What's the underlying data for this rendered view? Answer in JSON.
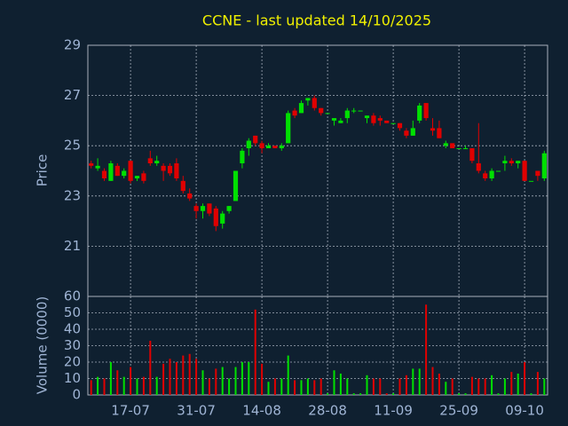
{
  "chart_data": [
    {
      "type": "candlestick",
      "title": "CCNE - last updated 14/10/2025",
      "ylabel": "Price",
      "up_color": "#00e000",
      "down_color": "#e00000",
      "grid": true,
      "ylim": [
        19,
        29
      ],
      "yticks": [
        21,
        23,
        25,
        27,
        29
      ],
      "open": [
        24.3,
        24.1,
        24.0,
        23.6,
        24.2,
        23.8,
        24.4,
        23.7,
        23.9,
        24.5,
        24.3,
        24.2,
        24.2,
        24.3,
        23.6,
        23.1,
        22.6,
        22.4,
        22.7,
        22.5,
        21.9,
        22.4,
        22.8,
        24.3,
        24.9,
        25.4,
        25.1,
        24.9,
        25.0,
        24.9,
        25.1,
        26.4,
        26.3,
        26.8,
        26.9,
        26.5,
        26.3,
        26.0,
        25.9,
        26.1,
        26.4,
        26.4,
        26.1,
        26.2,
        26.1,
        26.0,
        25.9,
        25.9,
        25.6,
        25.4,
        26.0,
        26.7,
        25.7,
        25.7,
        25.0,
        25.1,
        24.9,
        24.9,
        24.9,
        24.3,
        23.9,
        23.7,
        24.0,
        24.3,
        24.4,
        24.3,
        24.4,
        23.6,
        24.0,
        23.7
      ],
      "high": [
        24.4,
        24.5,
        24.1,
        24.4,
        24.3,
        24.1,
        24.4,
        23.8,
        24.0,
        24.8,
        24.6,
        24.3,
        24.3,
        24.5,
        23.8,
        23.3,
        22.7,
        22.7,
        22.7,
        22.6,
        22.4,
        22.6,
        24.0,
        24.9,
        25.3,
        25.4,
        25.2,
        25.1,
        25.0,
        25.1,
        26.4,
        26.5,
        26.8,
        26.9,
        27.0,
        26.5,
        26.3,
        26.1,
        26.1,
        26.5,
        26.5,
        26.4,
        26.2,
        26.3,
        26.2,
        26.0,
        25.9,
        25.9,
        25.7,
        26.0,
        26.7,
        26.7,
        26.1,
        26.0,
        25.2,
        25.1,
        24.9,
        25.0,
        24.9,
        25.9,
        24.0,
        24.1,
        24.0,
        24.6,
        24.5,
        24.4,
        24.4,
        23.6,
        24.0,
        24.8
      ],
      "low": [
        24.1,
        24.0,
        23.6,
        23.6,
        23.8,
        23.7,
        23.5,
        23.6,
        23.5,
        24.2,
        24.2,
        23.6,
        23.8,
        23.6,
        23.1,
        22.8,
        22.1,
        22.1,
        22.2,
        21.6,
        21.7,
        22.3,
        22.8,
        24.1,
        24.6,
        25.0,
        24.7,
        24.9,
        24.9,
        24.8,
        25.1,
        26.1,
        26.3,
        26.6,
        26.4,
        26.2,
        26.3,
        25.8,
        25.9,
        25.9,
        26.3,
        26.4,
        25.9,
        25.8,
        25.8,
        25.9,
        25.9,
        25.6,
        25.3,
        25.4,
        25.9,
        26.0,
        25.4,
        25.3,
        24.9,
        24.9,
        24.9,
        24.9,
        24.3,
        23.9,
        23.6,
        23.6,
        24.0,
        24.0,
        24.2,
        24.1,
        23.6,
        23.6,
        23.6,
        23.6
      ],
      "close": [
        24.2,
        24.2,
        23.7,
        24.3,
        23.8,
        24.0,
        23.6,
        23.8,
        23.6,
        24.3,
        24.4,
        24.0,
        23.9,
        23.7,
        23.2,
        22.9,
        22.4,
        22.6,
        22.3,
        21.8,
        22.3,
        22.6,
        24.0,
        24.8,
        25.2,
        25.1,
        24.9,
        25.0,
        24.9,
        25.0,
        26.3,
        26.2,
        26.7,
        26.9,
        26.5,
        26.3,
        26.3,
        26.1,
        26.0,
        26.4,
        26.4,
        26.4,
        26.2,
        25.9,
        26.0,
        25.9,
        25.9,
        25.7,
        25.4,
        25.7,
        26.6,
        26.1,
        25.6,
        25.3,
        25.1,
        24.9,
        24.9,
        24.9,
        24.4,
        24.0,
        23.7,
        24.0,
        24.0,
        24.4,
        24.3,
        24.4,
        23.6,
        23.6,
        23.8,
        24.7
      ]
    },
    {
      "type": "bar",
      "ylabel": "Volume (0000)",
      "grid": true,
      "ylim": [
        0,
        60
      ],
      "yticks": [
        0,
        10,
        20,
        30,
        40,
        50,
        60
      ],
      "categories": [
        null,
        null,
        null,
        null,
        null,
        null,
        "17-07",
        null,
        null,
        null,
        null,
        null,
        null,
        null,
        null,
        null,
        "31-07",
        null,
        null,
        null,
        null,
        null,
        null,
        null,
        null,
        null,
        "14-08",
        null,
        null,
        null,
        null,
        null,
        null,
        null,
        null,
        null,
        "28-08",
        null,
        null,
        null,
        null,
        null,
        null,
        null,
        null,
        null,
        "11-09",
        null,
        null,
        null,
        null,
        null,
        null,
        null,
        null,
        null,
        "25-09",
        null,
        null,
        null,
        null,
        null,
        null,
        null,
        null,
        null,
        "09-10",
        null,
        null,
        null
      ],
      "values": [
        9,
        11,
        10,
        20,
        15,
        11,
        17,
        10,
        11,
        33,
        11,
        19,
        22,
        20,
        24,
        25,
        22,
        15,
        10,
        16,
        17,
        10,
        17,
        20,
        20,
        52,
        19,
        8,
        10,
        10,
        24,
        9,
        9,
        10,
        9,
        10,
        1,
        15,
        13,
        10,
        1,
        1,
        12,
        10,
        10,
        1,
        1,
        10,
        12,
        16,
        16,
        55,
        17,
        13,
        8,
        10,
        1,
        1,
        11,
        10,
        10,
        12,
        1,
        10,
        14,
        13,
        20,
        1,
        14,
        10
      ]
    }
  ]
}
